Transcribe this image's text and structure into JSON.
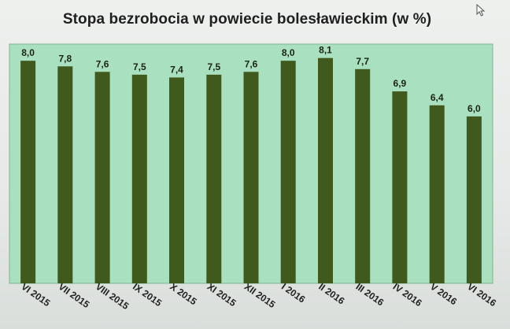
{
  "chart_data": {
    "type": "bar",
    "title": "Stopa bezrobocia w powiecie bolesławieckim (w %)",
    "categories": [
      "VI 2015",
      "VII 2015",
      "VIII 2015",
      "IX 2015",
      "X 2015",
      "XI 2015",
      "XII 2015",
      "I 2016",
      "II 2016",
      "III 2016",
      "IV 2016",
      "V 2016",
      "VI 2016"
    ],
    "values": [
      8.0,
      7.8,
      7.6,
      7.5,
      7.4,
      7.5,
      7.6,
      8.0,
      8.1,
      7.7,
      6.9,
      6.4,
      6.0
    ],
    "value_labels": [
      "8,0",
      "7,8",
      "7,6",
      "7,5",
      "7,4",
      "7,5",
      "7,6",
      "8,0",
      "8,1",
      "7,7",
      "6,9",
      "6,4",
      "6,0"
    ],
    "xlabel": "",
    "ylabel": "",
    "ylim": [
      0,
      8.6
    ],
    "grid": false,
    "legend": "none",
    "colors": {
      "bar": "#3f5a1c",
      "plot_background": "#a9e0bf",
      "plot_border": "#7fb390"
    }
  },
  "icons": {
    "cursor": "mouse-pointer-icon"
  }
}
